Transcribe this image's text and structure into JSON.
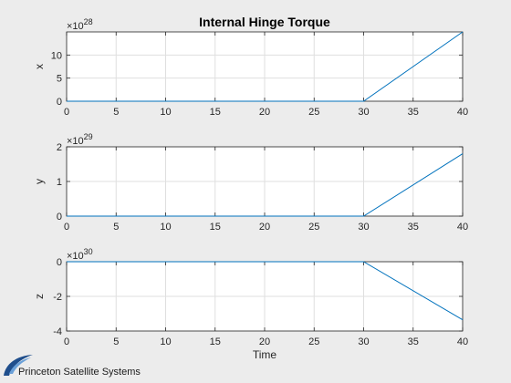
{
  "title": "Internal Hinge Torque",
  "logo": {
    "text": "Princeton Satellite Systems"
  },
  "colors": {
    "line": "#0072bd",
    "grid": "#dfdfdf",
    "axes": "#262626",
    "background": "#ececec",
    "plot_bg": "#ffffff"
  },
  "chart_data": [
    {
      "type": "line",
      "title": "Internal Hinge Torque",
      "xlabel": "",
      "ylabel": "x",
      "exponent_label": "×10",
      "exponent": "28",
      "xlim": [
        0,
        40
      ],
      "ylim": [
        0,
        15
      ],
      "xticks": [
        0,
        5,
        10,
        15,
        20,
        25,
        30,
        35,
        40
      ],
      "yticks": [
        0,
        5,
        10
      ],
      "grid": true,
      "series": [
        {
          "x": [
            0,
            30,
            40
          ],
          "y": [
            0,
            0,
            15
          ]
        }
      ]
    },
    {
      "type": "line",
      "xlabel": "",
      "ylabel": "y",
      "exponent_label": "×10",
      "exponent": "29",
      "xlim": [
        0,
        40
      ],
      "ylim": [
        0,
        2
      ],
      "xticks": [
        0,
        5,
        10,
        15,
        20,
        25,
        30,
        35,
        40
      ],
      "yticks": [
        0,
        1,
        2
      ],
      "grid": true,
      "series": [
        {
          "x": [
            0,
            30,
            40
          ],
          "y": [
            0,
            0,
            1.8
          ]
        }
      ]
    },
    {
      "type": "line",
      "xlabel": "Time",
      "ylabel": "z",
      "exponent_label": "×10",
      "exponent": "30",
      "xlim": [
        0,
        40
      ],
      "ylim": [
        -4,
        0
      ],
      "xticks": [
        0,
        5,
        10,
        15,
        20,
        25,
        30,
        35,
        40
      ],
      "yticks": [
        -4,
        -2,
        0
      ],
      "grid": true,
      "series": [
        {
          "x": [
            0,
            30,
            40
          ],
          "y": [
            0,
            0,
            -3.35
          ]
        }
      ]
    }
  ]
}
